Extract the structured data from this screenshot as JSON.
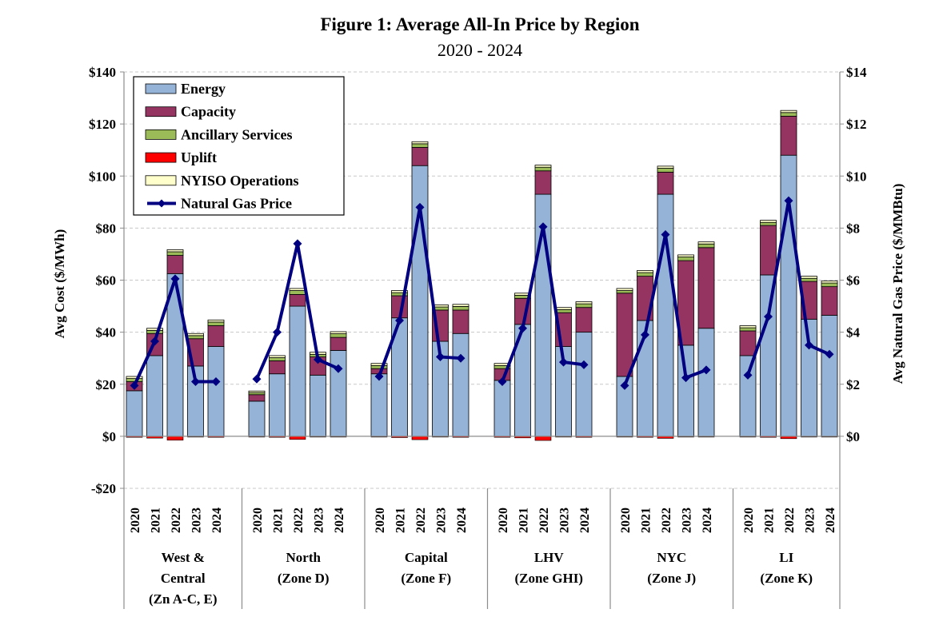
{
  "chart_data": {
    "type": "bar",
    "stacked": true,
    "title": "Figure 1: Average All-In Price by Region",
    "subtitle": "2020 - 2024",
    "ylabel": "Avg Cost ($/MWh)",
    "y2label": "Avg Natural Gas Price ($/MMBtu)",
    "ylim": [
      -20,
      140
    ],
    "y2lim": [
      -2,
      14
    ],
    "yticks": [
      -20,
      0,
      20,
      40,
      60,
      80,
      100,
      120,
      140
    ],
    "yticklabels": [
      "-$20",
      "$0",
      "$20",
      "$40",
      "$60",
      "$80",
      "$100",
      "$120",
      "$140"
    ],
    "y2ticks": [
      0,
      2,
      4,
      6,
      8,
      10,
      12,
      14
    ],
    "y2ticklabels": [
      "$0",
      "$2",
      "$4",
      "$6",
      "$8",
      "$10",
      "$12",
      "$14"
    ],
    "years": [
      "2020",
      "2021",
      "2022",
      "2023",
      "2024"
    ],
    "legend_position": "top-left",
    "colors": {
      "energy": "#95b3d7",
      "capacity": "#953461",
      "ancillary": "#9bbb59",
      "uplift": "#ff0000",
      "operations": "#ffffcc",
      "gas": "#000080",
      "grid": "#c8c8c8"
    },
    "series": [
      {
        "key": "energy",
        "name": "Energy",
        "type": "bar"
      },
      {
        "key": "capacity",
        "name": "Capacity",
        "type": "bar"
      },
      {
        "key": "ancillary",
        "name": "Ancillary Services",
        "type": "bar"
      },
      {
        "key": "uplift",
        "name": "Uplift",
        "type": "bar"
      },
      {
        "key": "operations",
        "name": "NYISO Operations",
        "type": "bar"
      },
      {
        "key": "gas",
        "name": "Natural Gas Price",
        "type": "line",
        "axis": "right"
      }
    ],
    "regions": [
      {
        "label": [
          "West &",
          "Central",
          "(Zn A-C, E)"
        ],
        "energy": [
          17.5,
          31,
          62.5,
          27,
          34.5
        ],
        "capacity": [
          3.5,
          8.5,
          7,
          10.5,
          8
        ],
        "ancillary": [
          1.2,
          1.2,
          1.4,
          1.2,
          1.4
        ],
        "uplift": [
          -0.4,
          -0.7,
          -1.5,
          -0.3,
          -0.4
        ],
        "operations": [
          0.8,
          0.8,
          0.8,
          0.8,
          0.8
        ],
        "gas": [
          1.95,
          3.65,
          6.05,
          2.1,
          2.1
        ]
      },
      {
        "label": [
          "North",
          "(Zone D)"
        ],
        "energy": [
          13.5,
          24,
          50,
          23.5,
          33
        ],
        "capacity": [
          2.5,
          5,
          4.5,
          7,
          5
        ],
        "ancillary": [
          0.8,
          1.2,
          1.5,
          1.0,
          1.4
        ],
        "uplift": [
          -0.2,
          -0.4,
          -1.2,
          -0.2,
          -0.3
        ],
        "operations": [
          0.6,
          0.8,
          0.8,
          0.8,
          0.8
        ],
        "gas": [
          2.2,
          4.0,
          7.4,
          2.95,
          2.6
        ]
      },
      {
        "label": [
          "Capital",
          "(Zone F)"
        ],
        "energy": [
          24,
          45.5,
          104,
          36.5,
          39.5
        ],
        "capacity": [
          2,
          8.5,
          7,
          12,
          9
        ],
        "ancillary": [
          1.2,
          1.2,
          1.4,
          1.2,
          1.4
        ],
        "uplift": [
          -0.3,
          -0.5,
          -1.3,
          -0.3,
          -0.4
        ],
        "operations": [
          0.8,
          0.8,
          0.8,
          0.8,
          0.8
        ],
        "gas": [
          2.3,
          4.45,
          8.8,
          3.05,
          3.0
        ]
      },
      {
        "label": [
          "LHV",
          "(Zone GHI)"
        ],
        "energy": [
          21.5,
          43,
          93,
          34.5,
          40
        ],
        "capacity": [
          4.5,
          10,
          9,
          13,
          9.5
        ],
        "ancillary": [
          1.2,
          1.2,
          1.4,
          1.2,
          1.4
        ],
        "uplift": [
          -0.4,
          -0.6,
          -1.6,
          -0.3,
          -0.4
        ],
        "operations": [
          0.8,
          0.8,
          0.8,
          0.8,
          0.8
        ],
        "gas": [
          2.1,
          4.15,
          8.05,
          2.85,
          2.75
        ]
      },
      {
        "label": [
          "NYC",
          "(Zone J)"
        ],
        "energy": [
          23,
          44.5,
          93,
          35,
          41.5
        ],
        "capacity": [
          32,
          17,
          8.5,
          32.5,
          31
        ],
        "ancillary": [
          1.0,
          1.4,
          1.5,
          1.4,
          1.4
        ],
        "uplift": [
          -0.3,
          -0.4,
          -0.8,
          -0.3,
          -0.3
        ],
        "operations": [
          0.8,
          0.8,
          0.8,
          0.8,
          0.8
        ],
        "gas": [
          1.95,
          3.9,
          7.75,
          2.25,
          2.55
        ]
      },
      {
        "label": [
          "LI",
          "(Zone K)"
        ],
        "energy": [
          31,
          62,
          108,
          45,
          46.5
        ],
        "capacity": [
          9.5,
          19,
          15,
          14.5,
          11
        ],
        "ancillary": [
          1.2,
          1.2,
          1.4,
          1.2,
          1.4
        ],
        "uplift": [
          -0.3,
          -0.4,
          -0.9,
          -0.3,
          -0.3
        ],
        "operations": [
          0.8,
          0.8,
          0.8,
          0.8,
          0.8
        ],
        "gas": [
          2.35,
          4.6,
          9.05,
          3.5,
          3.15
        ]
      }
    ]
  }
}
